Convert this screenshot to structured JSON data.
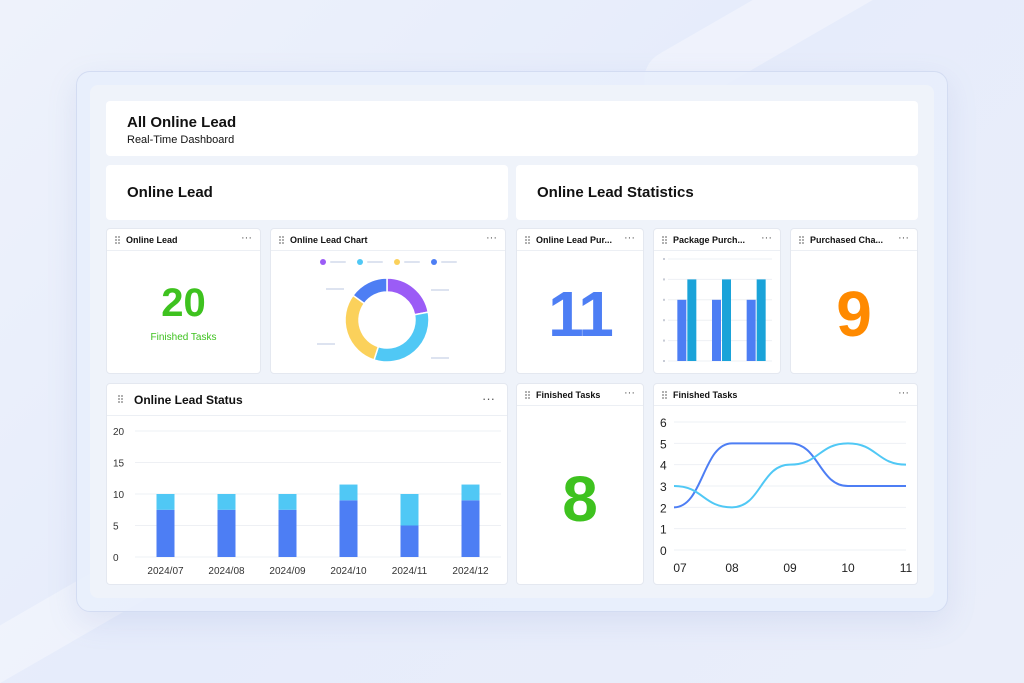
{
  "header": {
    "title": "All Online Lead",
    "subtitle": "Real-Time Dashboard"
  },
  "sections": {
    "left": "Online Lead",
    "right": "Online Lead Statistics"
  },
  "widgets": {
    "online_lead": {
      "title": "Online Lead",
      "value": "20",
      "label": "Finished Tasks",
      "color": "#3ec21f"
    },
    "lead_chart": {
      "title": "Online Lead Chart"
    },
    "lead_purchase": {
      "title": "Online Lead Pur...",
      "value": "11",
      "color": "#4d7ef4"
    },
    "package_purchase": {
      "title": "Package Purch..."
    },
    "purchased_channel": {
      "title": "Purchased Cha...",
      "value": "9",
      "color": "#ff8a00"
    },
    "lead_status": {
      "title": "Online Lead Status"
    },
    "finished_tasks_num": {
      "title": "Finished Tasks",
      "value": "8",
      "color": "#3ec21f"
    },
    "finished_tasks_line": {
      "title": "Finished Tasks"
    },
    "more_glyph": "···"
  },
  "chart_data": [
    {
      "type": "pie",
      "id": "lead_chart",
      "values": [
        22,
        33,
        30,
        15
      ],
      "colors": [
        "#9b5cf6",
        "#50c8f5",
        "#fbd15b",
        "#4d7ef4"
      ]
    },
    {
      "type": "bar",
      "id": "package_purchase",
      "categories": [
        "1",
        "2",
        "3"
      ],
      "series": [
        {
          "values": [
            6,
            6,
            6
          ],
          "color": "#4d7ef4"
        },
        {
          "values": [
            8,
            8,
            8
          ],
          "color": "#1aa3d9"
        }
      ],
      "ylim": [
        0,
        10
      ]
    },
    {
      "type": "bar",
      "id": "lead_status",
      "categories": [
        "2024/07",
        "2024/08",
        "2024/09",
        "2024/10",
        "2024/11",
        "2024/12"
      ],
      "series": [
        {
          "values": [
            7.5,
            7.5,
            7.5,
            9,
            5,
            9
          ],
          "color": "#4d7ef4"
        },
        {
          "values": [
            2.5,
            2.5,
            2.5,
            2.5,
            5,
            2.5
          ],
          "color": "#50c8f5"
        }
      ],
      "yticks": [
        "0",
        "5",
        "10",
        "15",
        "20"
      ],
      "ylim": [
        0,
        20
      ],
      "grid": true
    },
    {
      "type": "line",
      "id": "finished_tasks_line",
      "x": [
        "07",
        "08",
        "09",
        "10",
        "11"
      ],
      "series": [
        {
          "values": [
            2,
            5,
            5,
            3,
            3
          ],
          "color": "#4d7ef4"
        },
        {
          "values": [
            3,
            2,
            4,
            5,
            4
          ],
          "color": "#50c8f5"
        }
      ],
      "yticks": [
        "0",
        "1",
        "2",
        "3",
        "4",
        "5",
        "6"
      ],
      "ylim": [
        0,
        6
      ],
      "grid": true
    }
  ]
}
